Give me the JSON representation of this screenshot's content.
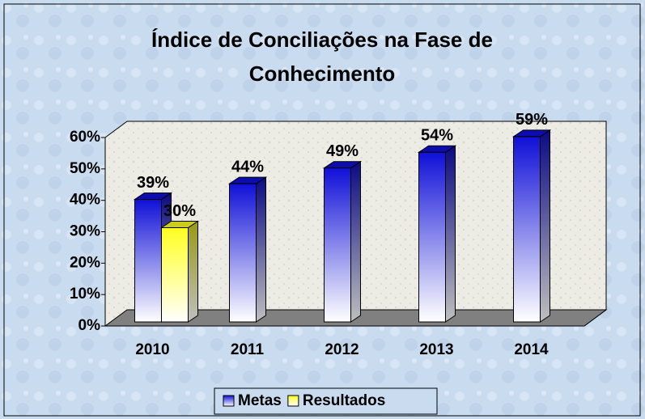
{
  "chart_data": {
    "type": "bar3d",
    "title": "Índice de Conciliações na Fase de Conhecimento",
    "categories": [
      "2010",
      "2011",
      "2012",
      "2013",
      "2014"
    ],
    "series": [
      {
        "name": "Metas",
        "color": "#1010d8",
        "values": [
          39,
          44,
          49,
          54,
          59
        ],
        "value_labels": [
          "39%",
          "44%",
          "49%",
          "54%",
          "59%"
        ]
      },
      {
        "name": "Resultados",
        "color": "#ffff20",
        "values": [
          30,
          null,
          null,
          null,
          null
        ],
        "value_labels": [
          "30%",
          null,
          null,
          null,
          null
        ]
      }
    ],
    "ylim": [
      0,
      60
    ],
    "yticks": [
      {
        "value": 0,
        "label": "0%"
      },
      {
        "value": 10,
        "label": "10%"
      },
      {
        "value": 20,
        "label": "20%"
      },
      {
        "value": 30,
        "label": "30%"
      },
      {
        "value": 40,
        "label": "40%"
      },
      {
        "value": 50,
        "label": "50%"
      },
      {
        "value": 60,
        "label": "60%"
      }
    ],
    "legend": "bottom"
  }
}
